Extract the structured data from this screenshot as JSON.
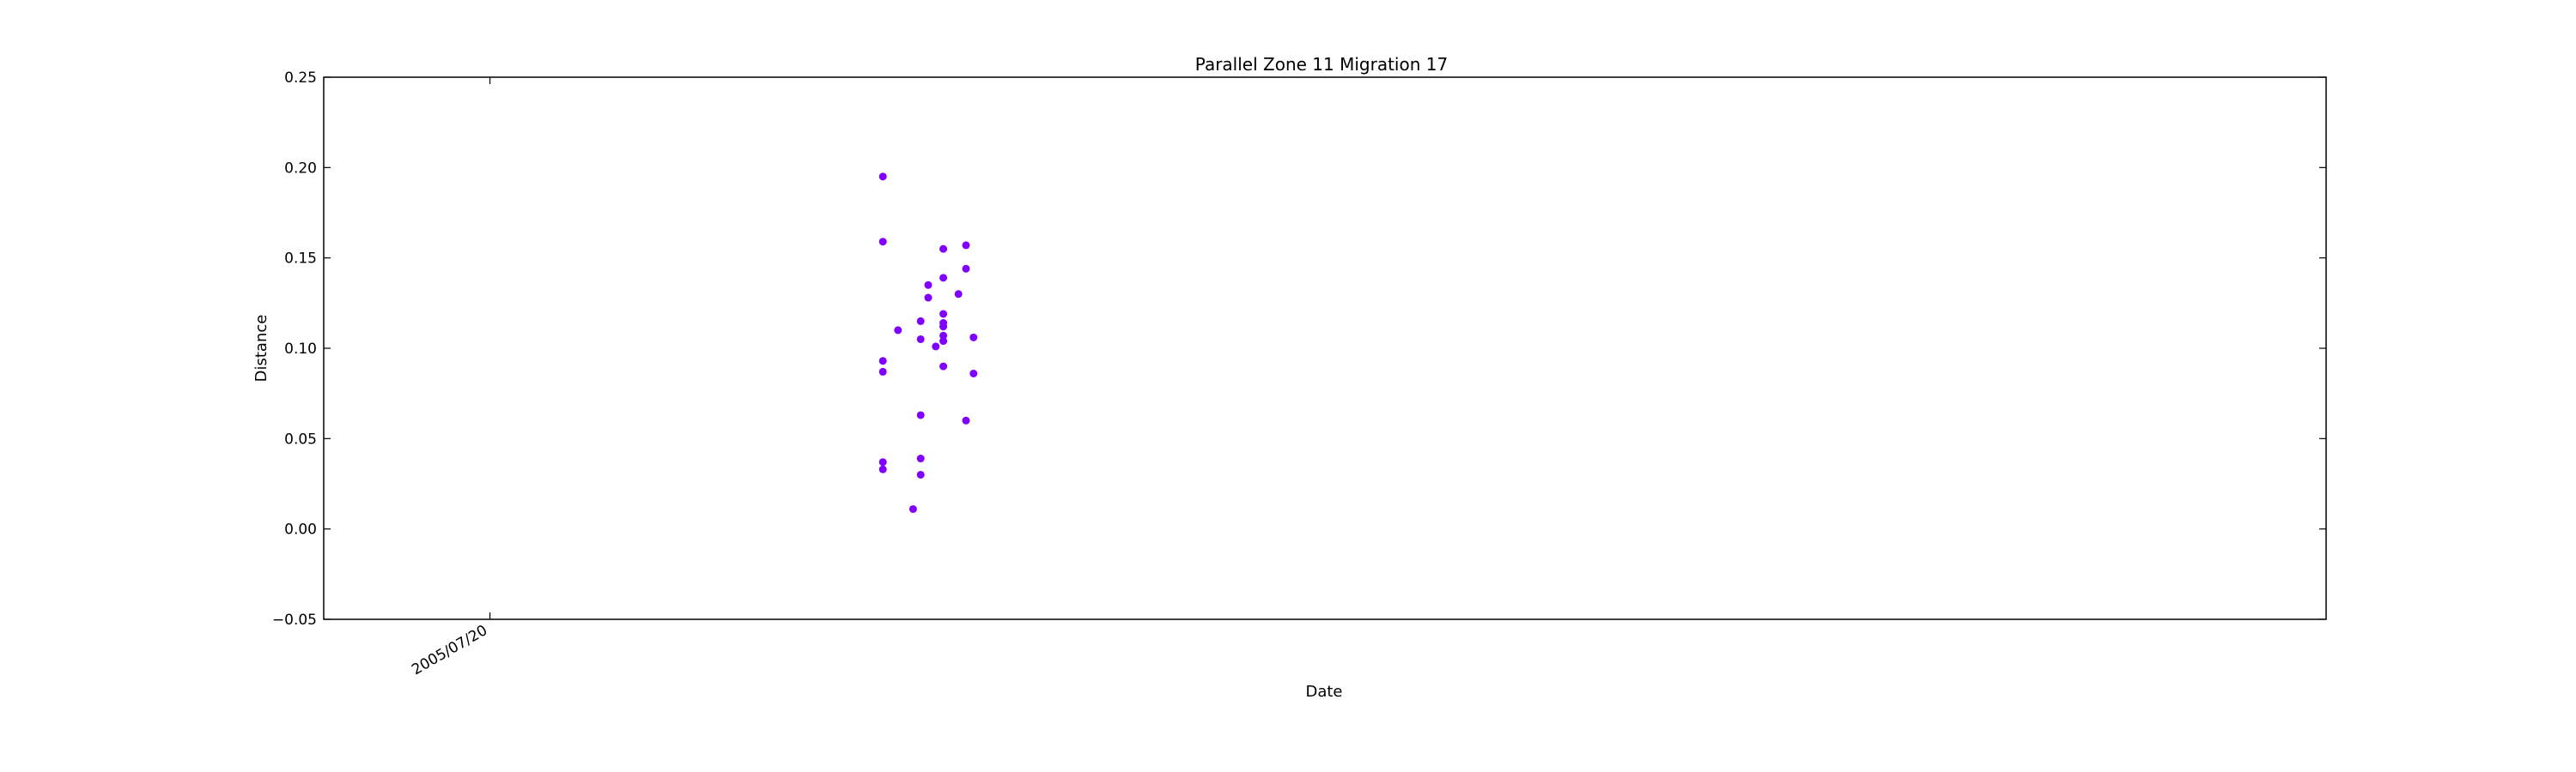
{
  "chart_data": {
    "type": "scatter",
    "title": "Parallel Zone 11 Migration 17",
    "xlabel": "Date",
    "ylabel": "Distance",
    "ylim": [
      -0.05,
      0.25
    ],
    "yticks": [
      -0.05,
      0.0,
      0.05,
      0.1,
      0.15,
      0.2,
      0.25
    ],
    "ytick_labels": [
      "−0.05",
      "0.00",
      "0.05",
      "0.10",
      "0.15",
      "0.20",
      "0.25"
    ],
    "xlim": [
      "2005-06-28",
      "2006-03-20"
    ],
    "xticks": [
      "2005-07-20"
    ],
    "xtick_labels": [
      "2005/07/20"
    ],
    "grid": false,
    "marker_color": "#8000ff",
    "points": [
      {
        "x": "2005-09-10",
        "y": 0.195
      },
      {
        "x": "2005-09-10",
        "y": 0.159
      },
      {
        "x": "2005-09-10",
        "y": 0.093
      },
      {
        "x": "2005-09-10",
        "y": 0.087
      },
      {
        "x": "2005-09-10",
        "y": 0.037
      },
      {
        "x": "2005-09-10",
        "y": 0.033
      },
      {
        "x": "2005-09-12",
        "y": 0.11
      },
      {
        "x": "2005-09-14",
        "y": 0.011
      },
      {
        "x": "2005-09-15",
        "y": 0.115
      },
      {
        "x": "2005-09-15",
        "y": 0.105
      },
      {
        "x": "2005-09-15",
        "y": 0.039
      },
      {
        "x": "2005-09-15",
        "y": 0.03
      },
      {
        "x": "2005-09-15",
        "y": 0.063
      },
      {
        "x": "2005-09-16",
        "y": 0.135
      },
      {
        "x": "2005-09-16",
        "y": 0.128
      },
      {
        "x": "2005-09-17",
        "y": 0.101
      },
      {
        "x": "2005-09-18",
        "y": 0.119
      },
      {
        "x": "2005-09-18",
        "y": 0.114
      },
      {
        "x": "2005-09-18",
        "y": 0.112
      },
      {
        "x": "2005-09-18",
        "y": 0.107
      },
      {
        "x": "2005-09-18",
        "y": 0.104
      },
      {
        "x": "2005-09-18",
        "y": 0.09
      },
      {
        "x": "2005-09-18",
        "y": 0.155
      },
      {
        "x": "2005-09-18",
        "y": 0.139
      },
      {
        "x": "2005-09-20",
        "y": 0.13
      },
      {
        "x": "2005-09-21",
        "y": 0.157
      },
      {
        "x": "2005-09-21",
        "y": 0.144
      },
      {
        "x": "2005-09-21",
        "y": 0.06
      },
      {
        "x": "2005-09-22",
        "y": 0.106
      },
      {
        "x": "2005-09-22",
        "y": 0.086
      }
    ]
  }
}
